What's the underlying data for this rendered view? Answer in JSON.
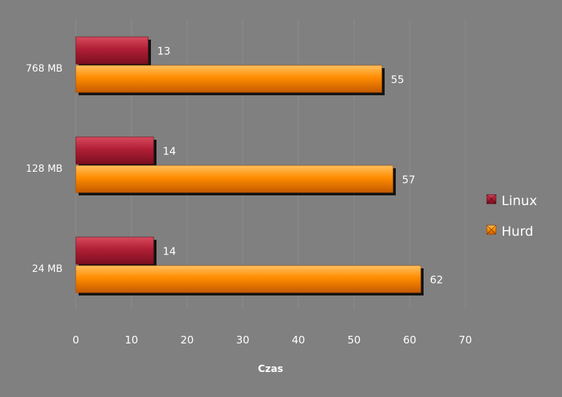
{
  "chart_data": {
    "type": "bar",
    "orientation": "horizontal",
    "categories": [
      "768 MB",
      "128 MB",
      "24 MB"
    ],
    "series": [
      {
        "name": "Linux",
        "values": [
          13,
          14,
          14
        ],
        "color": "#b01f35"
      },
      {
        "name": "Hurd",
        "values": [
          55,
          57,
          62
        ],
        "color": "#ff8c00"
      }
    ],
    "title": "",
    "xlabel": "Czas",
    "ylabel": "",
    "xlim": [
      0,
      70
    ],
    "ticks": [
      0,
      10,
      20,
      30,
      40,
      50,
      60,
      70
    ],
    "grid": true,
    "legend_position": "right",
    "data_labels": true,
    "background": "#808080"
  }
}
